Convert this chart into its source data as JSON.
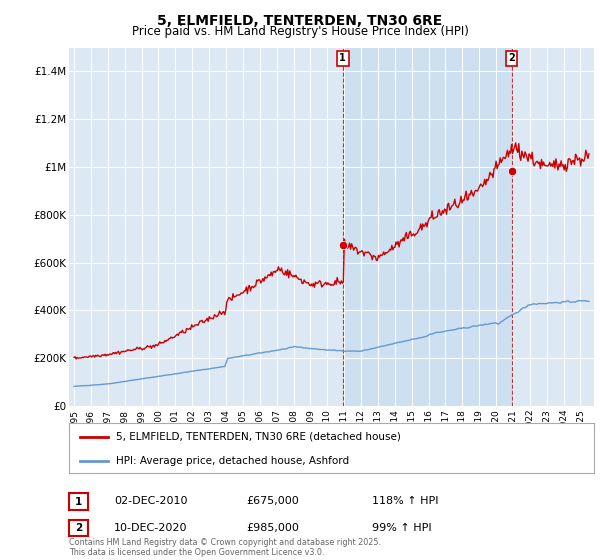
{
  "title": "5, ELMFIELD, TENTERDEN, TN30 6RE",
  "subtitle": "Price paid vs. HM Land Registry's House Price Index (HPI)",
  "title_fontsize": 10,
  "subtitle_fontsize": 8.5,
  "bg_color": "#ffffff",
  "plot_bg_color": "#dce9f5",
  "shade_color": "#c8ddf0",
  "legend_label_red": "5, ELMFIELD, TENTERDEN, TN30 6RE (detached house)",
  "legend_label_blue": "HPI: Average price, detached house, Ashford",
  "footnote": "Contains HM Land Registry data © Crown copyright and database right 2025.\nThis data is licensed under the Open Government Licence v3.0.",
  "sale1_date": "02-DEC-2010",
  "sale1_price": "£675,000",
  "sale1_hpi": "118% ↑ HPI",
  "sale2_date": "10-DEC-2020",
  "sale2_price": "£985,000",
  "sale2_hpi": "99% ↑ HPI",
  "vline1_x": 2010.92,
  "vline2_x": 2020.92,
  "ylim_min": 0,
  "ylim_max": 1500000,
  "yticks": [
    0,
    200000,
    400000,
    600000,
    800000,
    1000000,
    1200000,
    1400000
  ],
  "ytick_labels": [
    "£0",
    "£200K",
    "£400K",
    "£600K",
    "£800K",
    "£1M",
    "£1.2M",
    "£1.4M"
  ],
  "red_color": "#cc0000",
  "blue_color": "#6699cc",
  "marker1_x": 2010.92,
  "marker1_y": 675000,
  "marker2_x": 2020.92,
  "marker2_y": 985000,
  "xlim_min": 1994.7,
  "xlim_max": 2025.8
}
